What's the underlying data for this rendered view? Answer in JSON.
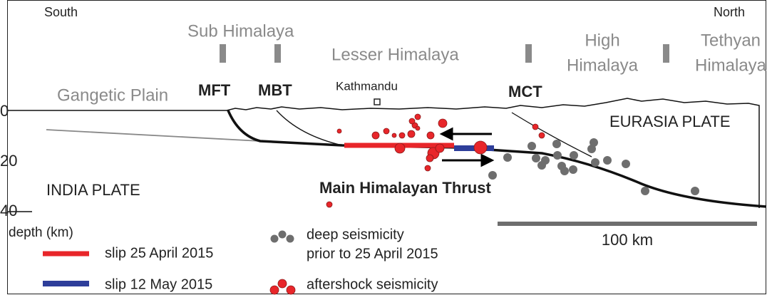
{
  "labels": {
    "south": "South",
    "north": "North",
    "sub_himalaya": "Sub Himalaya",
    "lesser_himalaya": "Lesser Himalaya",
    "high_himalaya": [
      "High",
      "Himalaya"
    ],
    "tethyan_himalaya": [
      "Tethyan",
      "Himalaya"
    ],
    "gangetic_plain": "Gangetic Plain",
    "mft": "MFT",
    "mbt": "MBT",
    "kathmandu": "Kathmandu",
    "mct": "MCT",
    "eurasia_plate": "EURASIA PLATE",
    "india_plate": "INDIA PLATE",
    "main_himalayan_thrust": "Main Himalayan Thrust"
  },
  "depth_axis": {
    "ticks": [
      "0",
      "20",
      "40"
    ],
    "title": "depth (km)"
  },
  "legend": {
    "slip_april": "slip 25 April 2015",
    "slip_may": "slip 12 May 2015",
    "deep_seismicity": [
      "deep seismicity",
      "prior to 25 April 2015"
    ],
    "aftershock": "aftershock seismicity"
  },
  "scale_bar": {
    "label": "100 km"
  }
}
